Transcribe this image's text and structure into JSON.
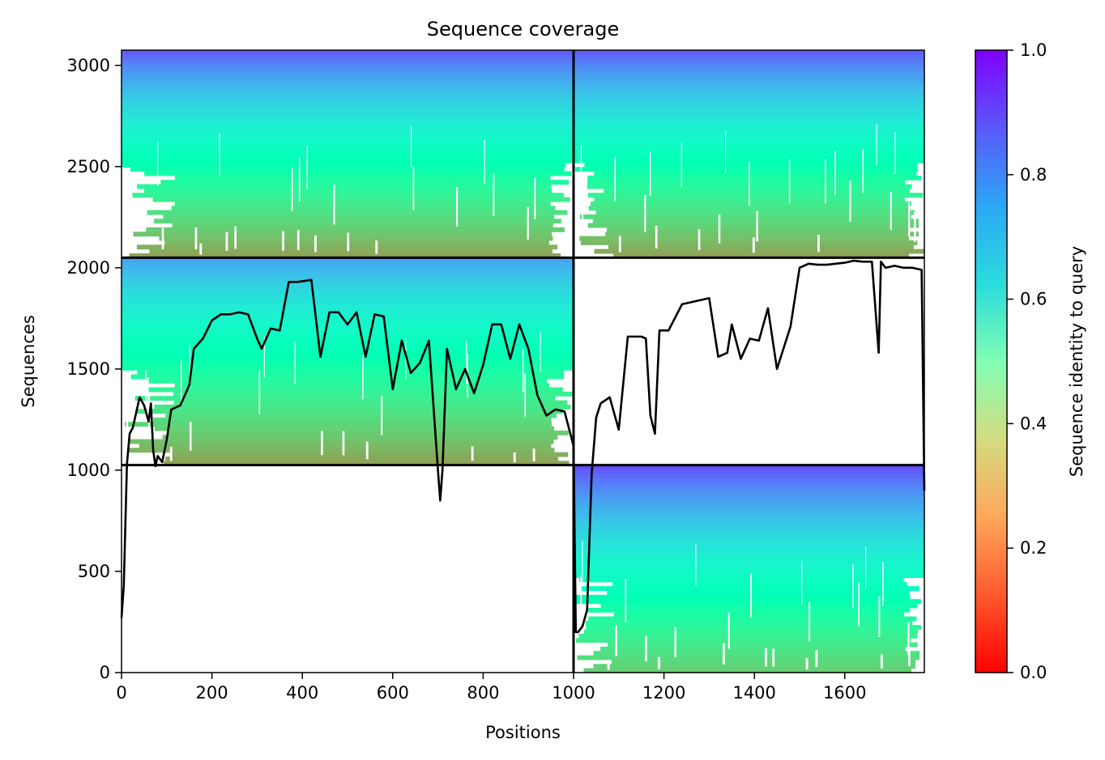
{
  "chart_data": {
    "type": "heatmap",
    "title": "Sequence coverage",
    "xlabel": "Positions",
    "ylabel": "Sequences",
    "xlim": [
      0,
      1776
    ],
    "ylim": [
      0,
      3075
    ],
    "x_ticks": [
      0,
      200,
      400,
      600,
      800,
      1000,
      1200,
      1400,
      1600
    ],
    "y_ticks": [
      0,
      500,
      1000,
      1500,
      2000,
      2500,
      3000
    ],
    "x_tick_labels": [
      "0",
      "200",
      "400",
      "600",
      "800",
      "1000",
      "1200",
      "1400",
      "1600"
    ],
    "y_tick_labels": [
      "0",
      "500",
      "1000",
      "1500",
      "2000",
      "2500",
      "3000"
    ],
    "colorbar": {
      "label": "Sequence identity to query",
      "range": [
        0.0,
        1.0
      ],
      "ticks": [
        0.0,
        0.2,
        0.4,
        0.6,
        0.8,
        1.0
      ],
      "tick_labels": [
        "0.0",
        "0.2",
        "0.4",
        "0.6",
        "0.8",
        "1.0"
      ],
      "colormap": "rainbow_r"
    },
    "chain_boundaries_x": [
      1000
    ],
    "chain_boundaries_y": [
      1025,
      2050
    ],
    "blocks": [
      {
        "name": "block-upper-left",
        "x": [
          0,
          1000
        ],
        "y": [
          2050,
          3075
        ],
        "identity_bottom": 0.22,
        "identity_top": 0.88
      },
      {
        "name": "block-upper-right",
        "x": [
          1000,
          1776
        ],
        "y": [
          2050,
          3075
        ],
        "identity_bottom": 0.22,
        "identity_top": 0.88
      },
      {
        "name": "block-middle-left",
        "x": [
          0,
          1000
        ],
        "y": [
          1025,
          2050
        ],
        "identity_bottom": 0.22,
        "identity_top": 0.78
      },
      {
        "name": "block-lower-right",
        "x": [
          1000,
          1776
        ],
        "y": [
          0,
          1025
        ],
        "identity_bottom": 0.3,
        "identity_top": 0.9
      }
    ],
    "coverage_line": {
      "x": [
        0,
        5,
        12,
        18,
        25,
        40,
        50,
        60,
        65,
        70,
        75,
        80,
        90,
        100,
        110,
        130,
        150,
        160,
        180,
        200,
        220,
        240,
        260,
        280,
        300,
        310,
        330,
        350,
        370,
        390,
        420,
        440,
        460,
        480,
        500,
        520,
        540,
        560,
        580,
        600,
        620,
        640,
        660,
        680,
        700,
        705,
        710,
        720,
        740,
        760,
        780,
        800,
        820,
        840,
        860,
        880,
        900,
        920,
        940,
        960,
        980,
        1000,
        1005,
        1010,
        1020,
        1030,
        1040,
        1050,
        1060,
        1080,
        1100,
        1120,
        1150,
        1160,
        1170,
        1180,
        1190,
        1210,
        1240,
        1260,
        1280,
        1300,
        1320,
        1340,
        1350,
        1370,
        1390,
        1410,
        1430,
        1450,
        1470,
        1480,
        1500,
        1520,
        1540,
        1560,
        1580,
        1600,
        1620,
        1640,
        1660,
        1675,
        1680,
        1690,
        1710,
        1730,
        1750,
        1770,
        1776
      ],
      "y": [
        270,
        430,
        1030,
        1180,
        1210,
        1360,
        1320,
        1240,
        1330,
        1100,
        1020,
        1070,
        1040,
        1150,
        1300,
        1320,
        1420,
        1600,
        1650,
        1740,
        1770,
        1770,
        1780,
        1770,
        1650,
        1600,
        1700,
        1690,
        1930,
        1930,
        1940,
        1560,
        1780,
        1780,
        1720,
        1780,
        1560,
        1770,
        1760,
        1400,
        1640,
        1480,
        1530,
        1640,
        1000,
        850,
        1000,
        1600,
        1400,
        1500,
        1380,
        1520,
        1720,
        1720,
        1550,
        1720,
        1600,
        1370,
        1270,
        1300,
        1290,
        1120,
        200,
        200,
        230,
        310,
        980,
        1260,
        1330,
        1360,
        1200,
        1660,
        1660,
        1650,
        1270,
        1180,
        1690,
        1690,
        1820,
        1830,
        1840,
        1850,
        1560,
        1580,
        1720,
        1550,
        1650,
        1640,
        1800,
        1500,
        1640,
        1710,
        2000,
        2020,
        2015,
        2015,
        2020,
        2025,
        2035,
        2030,
        2030,
        1580,
        2030,
        2000,
        2010,
        2000,
        2000,
        1990,
        900
      ]
    }
  }
}
